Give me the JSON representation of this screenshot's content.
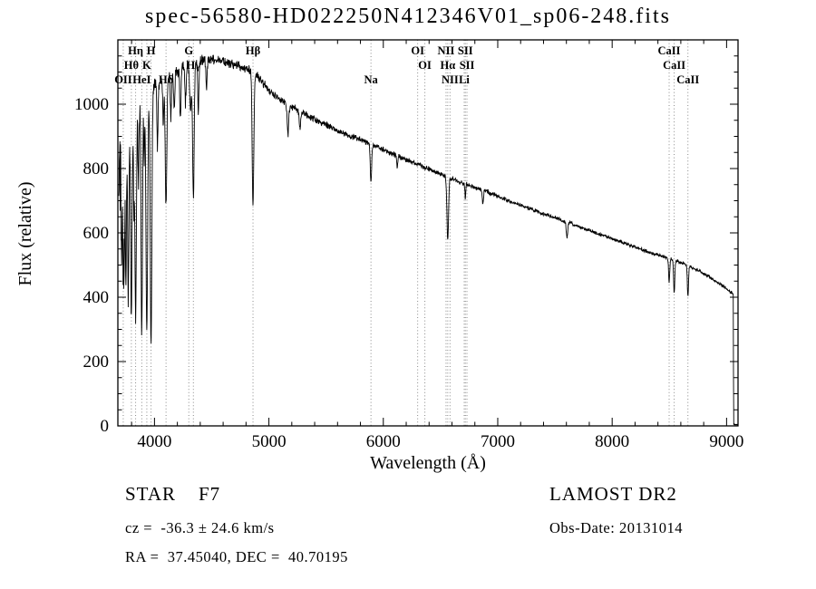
{
  "title": "spec-56580-HD022250N412346V01_sp06-248.fits",
  "footer": {
    "left_line1": "STAR    F7",
    "left_line2": "cz =  -36.3 ± 24.6 km/s",
    "left_line3": "RA =  37.45040, DEC =  40.70195",
    "right_line1": "LAMOST DR2",
    "right_line2": "Obs-Date: 20131014"
  },
  "chart_data": {
    "type": "line",
    "title": "spec-56580-HD022250N412346V01_sp06-248.fits",
    "xlabel": "Wavelength (Å)",
    "ylabel": "Flux (relative)",
    "xlim": [
      3680,
      9100
    ],
    "ylim": [
      0,
      1200
    ],
    "xticks": [
      4000,
      5000,
      6000,
      7000,
      8000,
      9000
    ],
    "yticks": [
      0,
      200,
      400,
      600,
      800,
      1000
    ],
    "x_minor_step": 200,
    "y_minor_step": 50,
    "line_color": "#000000",
    "annotation_line_style": "dotted",
    "noise_seed": 20131014,
    "sample_step_angstrom": 2.5,
    "continuum_points": [
      [
        3688,
        760
      ],
      [
        3700,
        810
      ],
      [
        3720,
        850
      ],
      [
        3745,
        880
      ],
      [
        3780,
        920
      ],
      [
        3820,
        950
      ],
      [
        3860,
        980
      ],
      [
        3900,
        1005
      ],
      [
        3950,
        1030
      ],
      [
        4000,
        1055
      ],
      [
        4080,
        1075
      ],
      [
        4160,
        1095
      ],
      [
        4240,
        1110
      ],
      [
        4320,
        1125
      ],
      [
        4400,
        1135
      ],
      [
        4480,
        1140
      ],
      [
        4560,
        1138
      ],
      [
        4640,
        1130
      ],
      [
        4720,
        1122
      ],
      [
        4800,
        1112
      ],
      [
        4860,
        1100
      ],
      [
        4920,
        1075
      ],
      [
        5000,
        1045
      ],
      [
        5080,
        1020
      ],
      [
        5160,
        1000
      ],
      [
        5240,
        985
      ],
      [
        5320,
        968
      ],
      [
        5400,
        952
      ],
      [
        5480,
        938
      ],
      [
        5560,
        925
      ],
      [
        5640,
        912
      ],
      [
        5720,
        900
      ],
      [
        5800,
        890
      ],
      [
        5880,
        878
      ],
      [
        5960,
        865
      ],
      [
        6040,
        852
      ],
      [
        6120,
        840
      ],
      [
        6200,
        828
      ],
      [
        6280,
        816
      ],
      [
        6360,
        804
      ],
      [
        6440,
        793
      ],
      [
        6520,
        780
      ],
      [
        6600,
        768
      ],
      [
        6680,
        758
      ],
      [
        6760,
        746
      ],
      [
        6840,
        736
      ],
      [
        6920,
        726
      ],
      [
        7000,
        714
      ],
      [
        7080,
        702
      ],
      [
        7160,
        692
      ],
      [
        7240,
        681
      ],
      [
        7320,
        670
      ],
      [
        7400,
        660
      ],
      [
        7480,
        650
      ],
      [
        7560,
        640
      ],
      [
        7640,
        629
      ],
      [
        7720,
        618
      ],
      [
        7800,
        607
      ],
      [
        7880,
        597
      ],
      [
        7960,
        587
      ],
      [
        8040,
        576
      ],
      [
        8120,
        566
      ],
      [
        8200,
        556
      ],
      [
        8280,
        546
      ],
      [
        8360,
        536
      ],
      [
        8440,
        527
      ],
      [
        8520,
        518
      ],
      [
        8600,
        508
      ],
      [
        8680,
        496
      ],
      [
        8760,
        482
      ],
      [
        8840,
        465
      ],
      [
        8900,
        450
      ],
      [
        8960,
        437
      ],
      [
        9010,
        424
      ],
      [
        9050,
        412
      ],
      [
        9058,
        408
      ],
      [
        9062,
        5
      ],
      [
        9100,
        3
      ]
    ],
    "noise_regions": [
      [
        3680,
        3745,
        140
      ],
      [
        3745,
        3910,
        48
      ],
      [
        3910,
        4010,
        35
      ],
      [
        4010,
        4510,
        24
      ],
      [
        4510,
        5010,
        18
      ],
      [
        5010,
        5510,
        14
      ],
      [
        5510,
        6210,
        11
      ],
      [
        6210,
        7010,
        9
      ],
      [
        7010,
        8010,
        7
      ],
      [
        8010,
        9045,
        6
      ],
      [
        9045,
        9100,
        2
      ]
    ],
    "absorption_lines": [
      [
        3712,
        330,
        4
      ],
      [
        3727,
        380,
        5
      ],
      [
        3737,
        300,
        4
      ],
      [
        3750,
        450,
        5
      ],
      [
        3771,
        520,
        5
      ],
      [
        3798,
        600,
        6
      ],
      [
        3820,
        260,
        4
      ],
      [
        3835,
        650,
        6
      ],
      [
        3860,
        220,
        4
      ],
      [
        3889,
        700,
        6
      ],
      [
        3910,
        180,
        4
      ],
      [
        3933,
        740,
        7
      ],
      [
        3970,
        780,
        7
      ],
      [
        4026,
        200,
        5
      ],
      [
        4077,
        150,
        4
      ],
      [
        4101,
        400,
        7
      ],
      [
        4144,
        130,
        5
      ],
      [
        4172,
        120,
        5
      ],
      [
        4226,
        150,
        5
      ],
      [
        4271,
        110,
        5
      ],
      [
        4315,
        150,
        7
      ],
      [
        4340,
        420,
        7
      ],
      [
        4383,
        160,
        5
      ],
      [
        4455,
        90,
        5
      ],
      [
        4861,
        420,
        7
      ],
      [
        5167,
        90,
        7
      ],
      [
        5270,
        60,
        6
      ],
      [
        5892,
        115,
        6
      ],
      [
        6122,
        40,
        5
      ],
      [
        6563,
        195,
        7
      ],
      [
        6717,
        45,
        4
      ],
      [
        6870,
        40,
        5
      ],
      [
        7605,
        50,
        6
      ],
      [
        8498,
        75,
        5
      ],
      [
        8542,
        105,
        5
      ],
      [
        8662,
        95,
        5
      ]
    ],
    "line_annotations": [
      {
        "label": "Hη",
        "wavelength": 3835,
        "row": 0
      },
      {
        "label": "H",
        "wavelength": 3970,
        "row": 0
      },
      {
        "label": "G",
        "wavelength": 4300,
        "row": 0
      },
      {
        "label": "Hβ",
        "wavelength": 4861,
        "row": 0
      },
      {
        "label": "OI",
        "wavelength": 6300,
        "row": 0
      },
      {
        "label": "NII",
        "wavelength": 6548,
        "row": 0
      },
      {
        "label": "SII",
        "wavelength": 6717,
        "row": 0
      },
      {
        "label": "CaII",
        "wavelength": 8498,
        "row": 0
      },
      {
        "label": "Hθ",
        "wavelength": 3798,
        "row": 1
      },
      {
        "label": "K",
        "wavelength": 3933,
        "row": 1
      },
      {
        "label": "Hγ",
        "wavelength": 4340,
        "row": 1
      },
      {
        "label": "OI",
        "wavelength": 6363,
        "row": 1
      },
      {
        "label": "Hα",
        "wavelength": 6563,
        "row": 1
      },
      {
        "label": "SII",
        "wavelength": 6731,
        "row": 1
      },
      {
        "label": "CaII",
        "wavelength": 8542,
        "row": 1
      },
      {
        "label": "OII",
        "wavelength": 3727,
        "row": 2
      },
      {
        "label": "HeI",
        "wavelength": 3889,
        "row": 2
      },
      {
        "label": "Hδ",
        "wavelength": 4101,
        "row": 2
      },
      {
        "label": "Na",
        "wavelength": 5892,
        "row": 2
      },
      {
        "label": "NII",
        "wavelength": 6583,
        "row": 2
      },
      {
        "label": "Li",
        "wavelength": 6707,
        "row": 2
      },
      {
        "label": "CaII",
        "wavelength": 8662,
        "row": 2
      }
    ]
  }
}
